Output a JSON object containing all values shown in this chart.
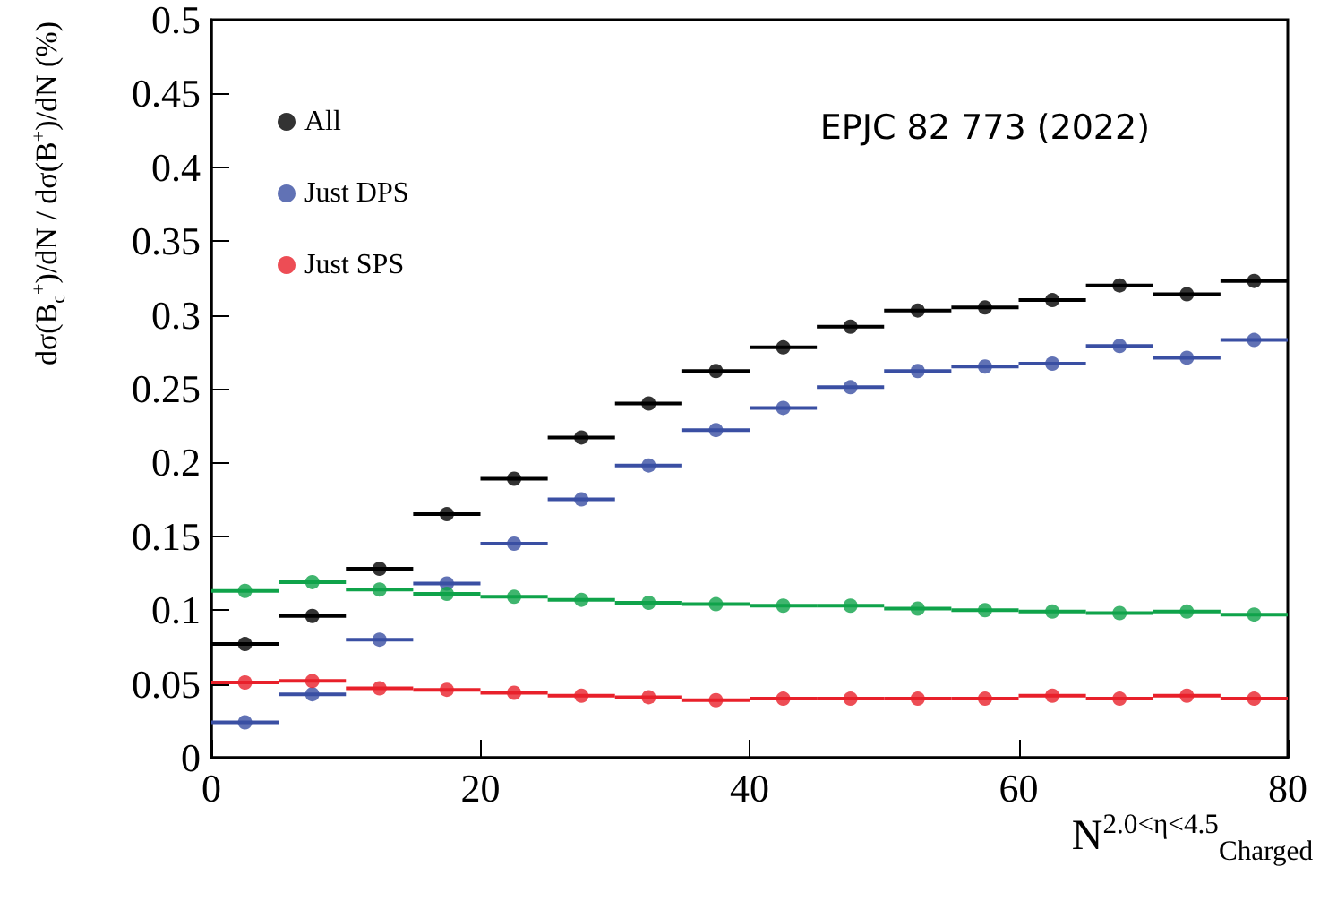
{
  "chart_data": {
    "type": "scatter",
    "ylabel": "dσ(B$_{c}$$^{+}$)/dN / dσ(B$^{+}$)/dN (%)",
    "xlabel": "N$^{2.0<η<4.5}$$_{Charged}$",
    "annotations": [
      "EPJC 82 773 (2022)"
    ],
    "x": [
      2.5,
      7.5,
      12.5,
      17.5,
      22.5,
      27.5,
      32.5,
      37.5,
      42.5,
      47.5,
      52.5,
      57.5,
      62.5,
      67.5,
      72.5,
      77.5
    ],
    "series": [
      {
        "name": "All",
        "color": "#000000",
        "values": [
          0.077,
          0.096,
          0.128,
          0.165,
          0.189,
          0.217,
          0.24,
          0.262,
          0.278,
          0.292,
          0.303,
          0.305,
          0.31,
          0.32,
          0.314,
          0.323
        ],
        "xerrors": [
          2.5,
          2.5,
          2.5,
          2.5,
          2.5,
          2.5,
          2.5,
          2.5,
          2.5,
          2.5,
          2.5,
          2.5,
          2.5,
          2.5,
          2.5,
          2.5
        ]
      },
      {
        "name": "Just DPS",
        "color": "#3a4fa3",
        "values": [
          0.024,
          0.043,
          0.08,
          0.118,
          0.145,
          0.175,
          0.198,
          0.222,
          0.237,
          0.251,
          0.262,
          0.265,
          0.267,
          0.279,
          0.271,
          0.283
        ],
        "xerrors": [
          2.5,
          2.5,
          2.5,
          2.5,
          2.5,
          2.5,
          2.5,
          2.5,
          2.5,
          2.5,
          2.5,
          2.5,
          2.5,
          2.5,
          2.5,
          2.5
        ]
      },
      {
        "name": "Just SPS",
        "color": "#e8202a",
        "values": [
          0.051,
          0.052,
          0.047,
          0.046,
          0.044,
          0.042,
          0.041,
          0.039,
          0.04,
          0.04,
          0.04,
          0.04,
          0.042,
          0.04,
          0.042,
          0.04
        ],
        "xerrors": [
          2.5,
          2.5,
          2.5,
          2.5,
          2.5,
          2.5,
          2.5,
          2.5,
          2.5,
          2.5,
          2.5,
          2.5,
          2.5,
          2.5,
          2.5,
          2.5
        ]
      },
      {
        "color": "#0fa34a",
        "values": [
          0.113,
          0.119,
          0.114,
          0.111,
          0.109,
          0.107,
          0.105,
          0.104,
          0.103,
          0.103,
          0.101,
          0.1,
          0.099,
          0.098,
          0.099,
          0.097
        ],
        "xerrors": [
          2.5,
          2.5,
          2.5,
          2.5,
          2.5,
          2.5,
          2.5,
          2.5,
          2.5,
          2.5,
          2.5,
          2.5,
          2.5,
          2.5,
          2.5,
          2.5
        ]
      }
    ],
    "xlim": [
      0,
      80
    ],
    "xticks": [
      0,
      20,
      40,
      60,
      80
    ],
    "ylim": [
      0,
      0.5
    ],
    "yticks": [
      0,
      0.05,
      0.1,
      0.15,
      0.2,
      0.25,
      0.3,
      0.35,
      0.4,
      0.45,
      0.5
    ],
    "marker": "circle",
    "legend": "top left",
    "grid": false
  }
}
